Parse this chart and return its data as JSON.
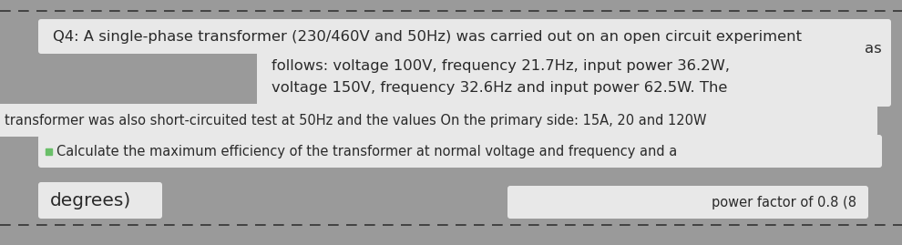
{
  "bg_color": "#9a9a9a",
  "box_color": "#e8e8e8",
  "text_color": "#2a2a2a",
  "line1": "Q4: A single-phase transformer (230/460V and 50Hz) was carried out on an open circuit experiment",
  "line_as": "as",
  "line2": "follows: voltage 100V, frequency 21.7Hz, input power 36.2W,",
  "line3": "voltage 150V, frequency 32.6Hz and input power 62.5W. The",
  "line4": "transformer was also short-circuited test at 50Hz and the values On the primary side: 15A, 20 and 120W",
  "line5": "Calculate the maximum efficiency of the transformer at normal voltage and frequency and a",
  "line6": "degrees)",
  "line7": "power factor of 0.8 (8",
  "dash_color": "#333333",
  "bullet_color": "#6abf69",
  "dpi": 100,
  "figw": 9.9,
  "figh": 2.69
}
